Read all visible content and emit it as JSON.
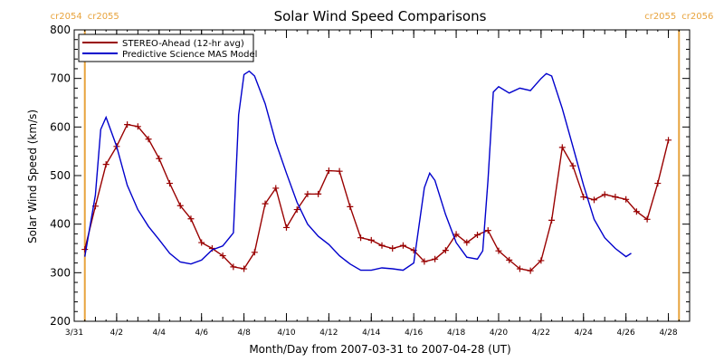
{
  "chart_data": {
    "type": "line",
    "title": "Solar Wind Speed Comparisons",
    "xlabel": "Month/Day from 2007-03-31 to 2007-04-28 (UT)",
    "ylabel": "Solar Wind Speed (km/s)",
    "xlim": [
      "2007-03-31",
      "2007-04-29"
    ],
    "ylim": [
      200,
      800
    ],
    "y_ticks": [
      200,
      300,
      400,
      500,
      600,
      700,
      800
    ],
    "x_ticks": [
      {
        "date": "2007-03-31",
        "label": "3/31"
      },
      {
        "date": "2007-04-02",
        "label": "4/2"
      },
      {
        "date": "2007-04-04",
        "label": "4/4"
      },
      {
        "date": "2007-04-06",
        "label": "4/6"
      },
      {
        "date": "2007-04-08",
        "label": "4/8"
      },
      {
        "date": "2007-04-10",
        "label": "4/10"
      },
      {
        "date": "2007-04-12",
        "label": "4/12"
      },
      {
        "date": "2007-04-14",
        "label": "4/14"
      },
      {
        "date": "2007-04-16",
        "label": "4/16"
      },
      {
        "date": "2007-04-18",
        "label": "4/18"
      },
      {
        "date": "2007-04-20",
        "label": "4/20"
      },
      {
        "date": "2007-04-22",
        "label": "4/22"
      },
      {
        "date": "2007-04-24",
        "label": "4/24"
      },
      {
        "date": "2007-04-26",
        "label": "4/26"
      },
      {
        "date": "2007-04-28",
        "label": "4/28"
      }
    ],
    "legend_position": "top-left",
    "grid": false,
    "markers": [
      {
        "date": "2007-03-31T12:00",
        "left_label": "cr2054",
        "right_label": "cr2055",
        "color": "#e8a33c"
      },
      {
        "date": "2007-04-28T12:00",
        "left_label": "cr2055",
        "right_label": "cr2056",
        "color": "#e8a33c"
      }
    ],
    "series": [
      {
        "name": "STEREO-Ahead (12-hr avg)",
        "color": "#990000",
        "marker": "plus",
        "points": [
          [
            "2007-03-31T12:00",
            348
          ],
          [
            "2007-04-01T00:00",
            437
          ],
          [
            "2007-04-01T12:00",
            523
          ],
          [
            "2007-04-02T00:00",
            560
          ],
          [
            "2007-04-02T12:00",
            605
          ],
          [
            "2007-04-03T00:00",
            601
          ],
          [
            "2007-04-03T12:00",
            575
          ],
          [
            "2007-04-04T00:00",
            535
          ],
          [
            "2007-04-04T12:00",
            484
          ],
          [
            "2007-04-05T00:00",
            438
          ],
          [
            "2007-04-05T12:00",
            411
          ],
          [
            "2007-04-06T00:00",
            362
          ],
          [
            "2007-04-06T12:00",
            350
          ],
          [
            "2007-04-07T00:00",
            335
          ],
          [
            "2007-04-07T12:00",
            312
          ],
          [
            "2007-04-08T00:00",
            308
          ],
          [
            "2007-04-08T12:00",
            342
          ],
          [
            "2007-04-09T00:00",
            442
          ],
          [
            "2007-04-09T12:00",
            474
          ],
          [
            "2007-04-10T00:00",
            393
          ],
          [
            "2007-04-10T12:00",
            430
          ],
          [
            "2007-04-11T00:00",
            462
          ],
          [
            "2007-04-11T12:00",
            462
          ],
          [
            "2007-04-12T00:00",
            510
          ],
          [
            "2007-04-12T12:00",
            509
          ],
          [
            "2007-04-13T00:00",
            436
          ],
          [
            "2007-04-13T12:00",
            372
          ],
          [
            "2007-04-14T00:00",
            367
          ],
          [
            "2007-04-14T12:00",
            356
          ],
          [
            "2007-04-15T00:00",
            350
          ],
          [
            "2007-04-15T12:00",
            356
          ],
          [
            "2007-04-16T00:00",
            346
          ],
          [
            "2007-04-16T12:00",
            323
          ],
          [
            "2007-04-17T00:00",
            328
          ],
          [
            "2007-04-17T12:00",
            346
          ],
          [
            "2007-04-18T00:00",
            379
          ],
          [
            "2007-04-18T12:00",
            362
          ],
          [
            "2007-04-19T00:00",
            378
          ],
          [
            "2007-04-19T12:00",
            387
          ],
          [
            "2007-04-20T00:00",
            345
          ],
          [
            "2007-04-20T12:00",
            326
          ],
          [
            "2007-04-21T00:00",
            308
          ],
          [
            "2007-04-21T12:00",
            304
          ],
          [
            "2007-04-22T00:00",
            325
          ],
          [
            "2007-04-22T12:00",
            408
          ],
          [
            "2007-04-23T00:00",
            558
          ],
          [
            "2007-04-23T12:00",
            520
          ],
          [
            "2007-04-24T00:00",
            456
          ],
          [
            "2007-04-24T12:00",
            450
          ],
          [
            "2007-04-25T00:00",
            461
          ],
          [
            "2007-04-25T12:00",
            456
          ],
          [
            "2007-04-26T00:00",
            451
          ],
          [
            "2007-04-26T12:00",
            426
          ],
          [
            "2007-04-27T00:00",
            410
          ],
          [
            "2007-04-27T12:00",
            484
          ],
          [
            "2007-04-28T00:00",
            573
          ]
        ]
      },
      {
        "name": "Predictive Science MAS Model",
        "color": "#0000cc",
        "marker": "none",
        "points": [
          [
            "2007-03-31T12:00",
            333
          ],
          [
            "2007-04-01T00:00",
            460
          ],
          [
            "2007-04-01T06:00",
            595
          ],
          [
            "2007-04-01T12:00",
            620
          ],
          [
            "2007-04-02T00:00",
            560
          ],
          [
            "2007-04-02T12:00",
            480
          ],
          [
            "2007-04-03T00:00",
            430
          ],
          [
            "2007-04-03T12:00",
            395
          ],
          [
            "2007-04-04T00:00",
            368
          ],
          [
            "2007-04-04T12:00",
            340
          ],
          [
            "2007-04-05T00:00",
            322
          ],
          [
            "2007-04-05T12:00",
            318
          ],
          [
            "2007-04-06T00:00",
            326
          ],
          [
            "2007-04-06T12:00",
            347
          ],
          [
            "2007-04-07T00:00",
            355
          ],
          [
            "2007-04-07T12:00",
            382
          ],
          [
            "2007-04-07T18:00",
            625
          ],
          [
            "2007-04-08T00:00",
            708
          ],
          [
            "2007-04-08T06:00",
            715
          ],
          [
            "2007-04-08T12:00",
            705
          ],
          [
            "2007-04-09T00:00",
            648
          ],
          [
            "2007-04-09T12:00",
            568
          ],
          [
            "2007-04-10T00:00",
            505
          ],
          [
            "2007-04-10T12:00",
            445
          ],
          [
            "2007-04-11T00:00",
            400
          ],
          [
            "2007-04-11T12:00",
            375
          ],
          [
            "2007-04-12T00:00",
            358
          ],
          [
            "2007-04-12T12:00",
            335
          ],
          [
            "2007-04-13T00:00",
            318
          ],
          [
            "2007-04-13T12:00",
            305
          ],
          [
            "2007-04-14T00:00",
            305
          ],
          [
            "2007-04-14T12:00",
            310
          ],
          [
            "2007-04-15T00:00",
            308
          ],
          [
            "2007-04-15T12:00",
            305
          ],
          [
            "2007-04-16T00:00",
            320
          ],
          [
            "2007-04-16T12:00",
            475
          ],
          [
            "2007-04-16T18:00",
            505
          ],
          [
            "2007-04-17T00:00",
            490
          ],
          [
            "2007-04-17T12:00",
            420
          ],
          [
            "2007-04-18T00:00",
            362
          ],
          [
            "2007-04-18T12:00",
            332
          ],
          [
            "2007-04-19T00:00",
            328
          ],
          [
            "2007-04-19T06:00",
            345
          ],
          [
            "2007-04-19T12:00",
            490
          ],
          [
            "2007-04-19T18:00",
            672
          ],
          [
            "2007-04-20T00:00",
            683
          ],
          [
            "2007-04-20T12:00",
            670
          ],
          [
            "2007-04-21T00:00",
            680
          ],
          [
            "2007-04-21T12:00",
            675
          ],
          [
            "2007-04-22T00:00",
            700
          ],
          [
            "2007-04-22T06:00",
            710
          ],
          [
            "2007-04-22T12:00",
            705
          ],
          [
            "2007-04-23T00:00",
            638
          ],
          [
            "2007-04-23T12:00",
            560
          ],
          [
            "2007-04-24T00:00",
            480
          ],
          [
            "2007-04-24T12:00",
            410
          ],
          [
            "2007-04-25T00:00",
            372
          ],
          [
            "2007-04-25T12:00",
            350
          ],
          [
            "2007-04-26T00:00",
            333
          ],
          [
            "2007-04-26T06:00",
            340
          ]
        ]
      }
    ]
  }
}
